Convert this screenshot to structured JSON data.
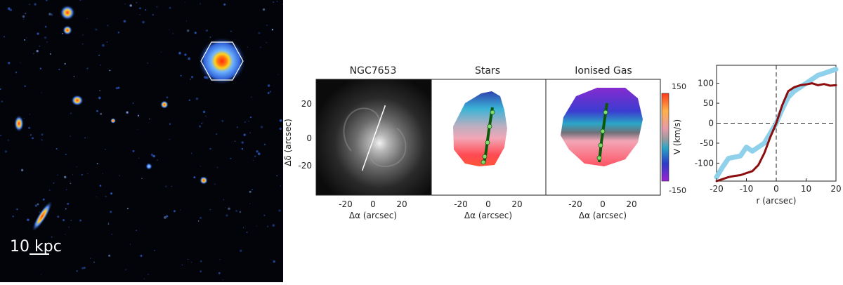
{
  "deep_field": {
    "scale_bar_label": "10 kpc",
    "colors": {
      "background": "#02040a",
      "halo": "#3f7fff",
      "core": "#ff3a1a",
      "hexagon": "#ffffff"
    }
  },
  "maps": {
    "panels": [
      {
        "title": "NGC7653",
        "kind": "image"
      },
      {
        "title": "Stars",
        "kind": "velocity"
      },
      {
        "title": "Ionised Gas",
        "kind": "velocity"
      }
    ],
    "ylabel": "Δδ (arcsec)",
    "xlabel": "Δα (arcsec)",
    "x_ticks": [
      "-20",
      "0",
      "20"
    ],
    "y_ticks": [
      "20",
      "0",
      "-20"
    ],
    "colorbar": {
      "label": "V (km/s)",
      "top": "150",
      "bottom": "-150"
    }
  },
  "chart_data": [
    {
      "type": "image",
      "title": "NGC7653",
      "xlabel": "Δα (arcsec)",
      "ylabel": "Δδ (arcsec)",
      "xlim": [
        -40,
        40
      ],
      "ylim": [
        -40,
        40
      ],
      "slit": {
        "x": [
          -8,
          8
        ],
        "y": [
          -23,
          22
        ]
      }
    },
    {
      "type": "heatmap",
      "title": "Stars",
      "xlabel": "Δα (arcsec)",
      "xlim": [
        -40,
        40
      ],
      "ylim": [
        -40,
        40
      ],
      "colorbar_range": [
        -150,
        150
      ]
    },
    {
      "type": "heatmap",
      "title": "Ionised Gas",
      "xlabel": "Δα (arcsec)",
      "xlim": [
        -40,
        40
      ],
      "ylim": [
        -40,
        40
      ],
      "colorbar_label": "V (km/s)",
      "colorbar_range": [
        -150,
        150
      ]
    },
    {
      "type": "line",
      "xlabel": "r (arcsec)",
      "xlim": [
        -20,
        20
      ],
      "ylim": [
        -145,
        145
      ],
      "x_ticks": [
        -20,
        -10,
        0,
        10,
        20
      ],
      "y_ticks": [
        -100,
        -50,
        0,
        50,
        100
      ],
      "series": [
        {
          "color": "#8fd0ea",
          "x": [
            -20,
            -18,
            -16,
            -14,
            -12,
            -10,
            -8,
            -6,
            -4,
            -2,
            0,
            2,
            4,
            6,
            8,
            10,
            12,
            14,
            16,
            18,
            20
          ],
          "y": [
            -135,
            -110,
            -88,
            -85,
            -82,
            -60,
            -70,
            -60,
            -50,
            -25,
            0,
            35,
            65,
            80,
            90,
            100,
            110,
            120,
            125,
            130,
            135
          ]
        },
        {
          "color": "#8b0d0d",
          "x": [
            -20,
            -18,
            -16,
            -14,
            -12,
            -10,
            -8,
            -6,
            -4,
            -2,
            0,
            2,
            4,
            6,
            8,
            10,
            12,
            14,
            16,
            18,
            20
          ],
          "y": [
            -145,
            -140,
            -135,
            -132,
            -130,
            -125,
            -120,
            -105,
            -75,
            -35,
            0,
            45,
            80,
            90,
            95,
            97,
            100,
            95,
            98,
            94,
            95
          ]
        }
      ]
    }
  ]
}
